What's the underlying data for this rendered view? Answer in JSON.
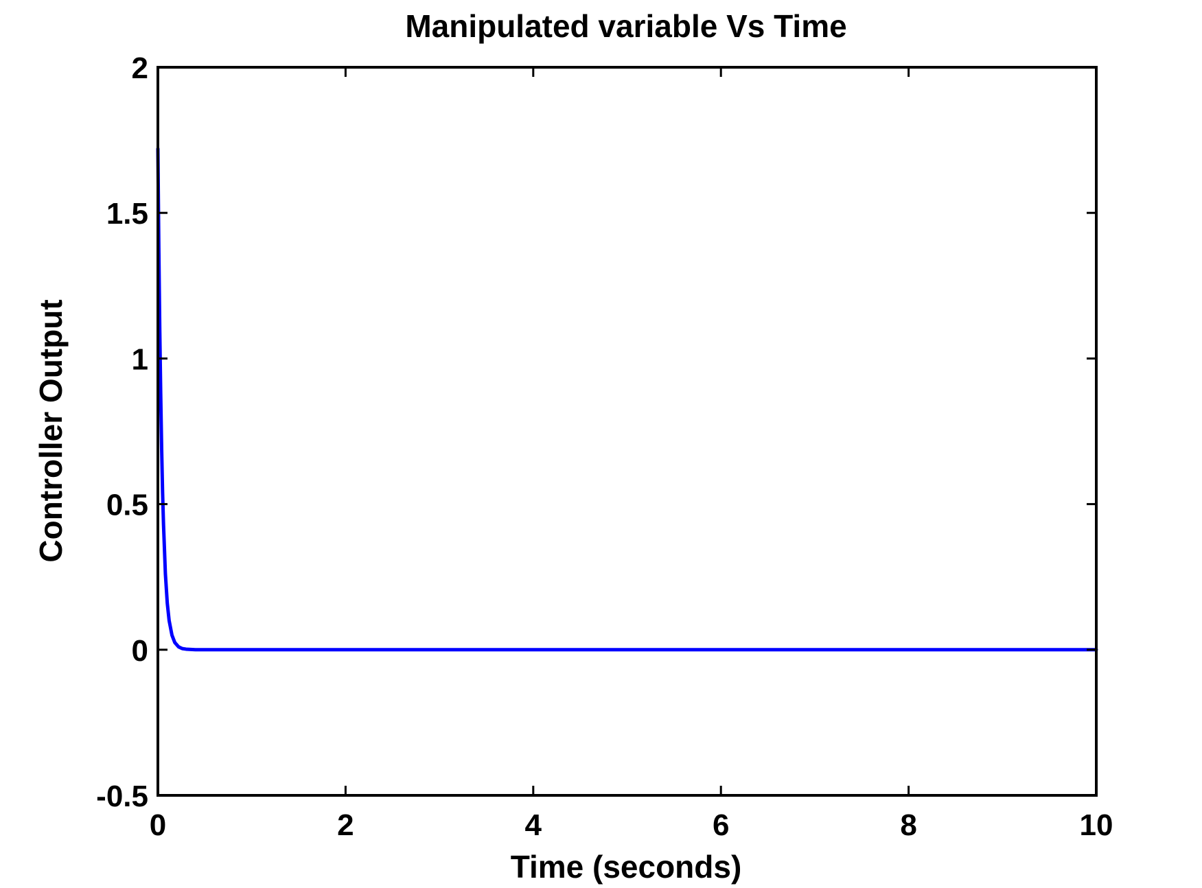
{
  "chart_data": {
    "type": "line",
    "title": "Manipulated variable Vs Time",
    "xlabel": "Time (seconds)",
    "ylabel": "Controller Output",
    "xlim": [
      0,
      10
    ],
    "ylim": [
      -0.5,
      2
    ],
    "xticks": [
      0,
      2,
      4,
      6,
      8,
      10
    ],
    "xtick_labels": [
      "0",
      "2",
      "4",
      "6",
      "8",
      "10"
    ],
    "yticks": [
      -0.5,
      0,
      0.5,
      1,
      1.5,
      2
    ],
    "ytick_labels": [
      "-0.5",
      "0",
      "0.5",
      "1",
      "1.5",
      "2"
    ],
    "grid": false,
    "legend": "none",
    "series": [
      {
        "color": "#0000ff",
        "x": [
          0,
          0.005,
          0.01,
          0.02,
          0.03,
          0.04,
          0.05,
          0.06,
          0.08,
          0.1,
          0.12,
          0.15,
          0.18,
          0.22,
          0.26,
          0.3,
          0.4,
          0.6,
          1,
          2,
          4,
          6,
          8,
          10
        ],
        "y": [
          1.72,
          1.55,
          1.38,
          1.1,
          0.88,
          0.69,
          0.54,
          0.43,
          0.26,
          0.16,
          0.1,
          0.05,
          0.025,
          0.01,
          0.004,
          0.002,
          0,
          0,
          0,
          0,
          0,
          0,
          0,
          0
        ]
      }
    ]
  }
}
